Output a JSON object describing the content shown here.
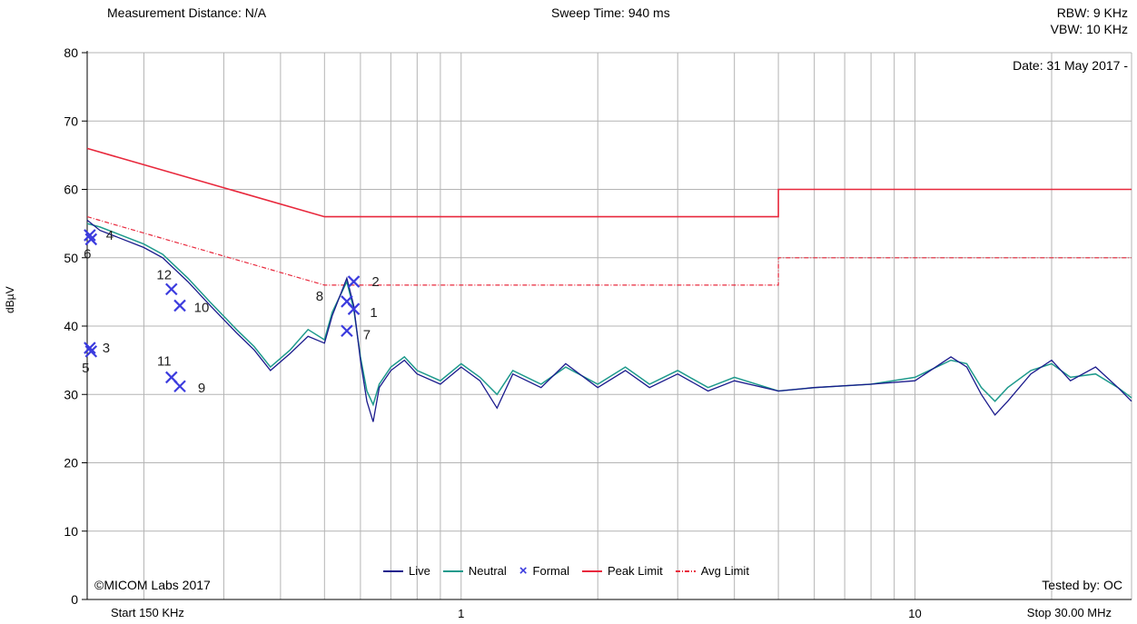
{
  "header": {
    "distance": "Measurement Distance: N/A",
    "sweep": "Sweep Time: 940 ms",
    "rbw": "RBW: 9 KHz",
    "vbw": "VBW: 10 KHz",
    "date": "Date: 31 May 2017 -",
    "copyright": "©MICOM Labs 2017",
    "tested_by": "Tested by: OC",
    "start": "Start 150 KHz",
    "stop": "Stop 30.00 MHz"
  },
  "chart_data": {
    "type": "line",
    "ylabel": "dBµV",
    "xscale": "log",
    "xlim": [
      0.15,
      30
    ],
    "ylim": [
      0,
      80
    ],
    "yticks": [
      0,
      10,
      20,
      30,
      40,
      50,
      60,
      70,
      80
    ],
    "xticks": [
      {
        "v": 1,
        "label": "1"
      },
      {
        "v": 10,
        "label": "10"
      }
    ],
    "grid": true,
    "legend_position": "bottom",
    "colors": {
      "live": "#1a1a8c",
      "neutral": "#1e9a8c",
      "formal": "#3b3bde",
      "peak": "#e8283c",
      "avg": "#e8283c",
      "grid": "#b4b4b4"
    },
    "legend": [
      "Live",
      "Neutral",
      "Formal",
      "Peak Limit",
      "Avg Limit"
    ],
    "peak_limit": [
      [
        0.15,
        66
      ],
      [
        0.5,
        56
      ],
      [
        5,
        56
      ],
      [
        5,
        60
      ],
      [
        30,
        60
      ]
    ],
    "avg_limit": [
      [
        0.15,
        56
      ],
      [
        0.5,
        46
      ],
      [
        5,
        46
      ],
      [
        5,
        50
      ],
      [
        30,
        50
      ]
    ],
    "live": [
      [
        0.15,
        55.5
      ],
      [
        0.16,
        54
      ],
      [
        0.175,
        53
      ],
      [
        0.2,
        51.5
      ],
      [
        0.22,
        50
      ],
      [
        0.25,
        46.5
      ],
      [
        0.28,
        43
      ],
      [
        0.32,
        39
      ],
      [
        0.35,
        36.5
      ],
      [
        0.38,
        33.5
      ],
      [
        0.42,
        36
      ],
      [
        0.46,
        38.5
      ],
      [
        0.5,
        37.5
      ],
      [
        0.52,
        41.5
      ],
      [
        0.56,
        47
      ],
      [
        0.58,
        43
      ],
      [
        0.6,
        35
      ],
      [
        0.62,
        29
      ],
      [
        0.64,
        26
      ],
      [
        0.66,
        31
      ],
      [
        0.7,
        33.5
      ],
      [
        0.75,
        35
      ],
      [
        0.8,
        33
      ],
      [
        0.9,
        31.5
      ],
      [
        1.0,
        34
      ],
      [
        1.1,
        32
      ],
      [
        1.2,
        28
      ],
      [
        1.3,
        33
      ],
      [
        1.5,
        31
      ],
      [
        1.7,
        34.5
      ],
      [
        2.0,
        31
      ],
      [
        2.3,
        33.5
      ],
      [
        2.6,
        31
      ],
      [
        3.0,
        33
      ],
      [
        3.5,
        30.5
      ],
      [
        4.0,
        32
      ],
      [
        5.0,
        30.5
      ],
      [
        6.0,
        31
      ],
      [
        8.0,
        31.5
      ],
      [
        10.0,
        32
      ],
      [
        12.0,
        35.5
      ],
      [
        13.0,
        34
      ],
      [
        14.0,
        30
      ],
      [
        15.0,
        27
      ],
      [
        16.0,
        29
      ],
      [
        18.0,
        33
      ],
      [
        20.0,
        35
      ],
      [
        22.0,
        32
      ],
      [
        25.0,
        34
      ],
      [
        28.0,
        31
      ],
      [
        30.0,
        29
      ]
    ],
    "neutral": [
      [
        0.15,
        55
      ],
      [
        0.16,
        54.5
      ],
      [
        0.175,
        53.5
      ],
      [
        0.2,
        52
      ],
      [
        0.22,
        50.5
      ],
      [
        0.25,
        47
      ],
      [
        0.28,
        43.5
      ],
      [
        0.32,
        39.5
      ],
      [
        0.35,
        37
      ],
      [
        0.38,
        34
      ],
      [
        0.42,
        36.5
      ],
      [
        0.46,
        39.5
      ],
      [
        0.5,
        38
      ],
      [
        0.52,
        42
      ],
      [
        0.56,
        46.5
      ],
      [
        0.58,
        42.5
      ],
      [
        0.6,
        35.5
      ],
      [
        0.62,
        30.5
      ],
      [
        0.64,
        28.5
      ],
      [
        0.66,
        31.5
      ],
      [
        0.7,
        34
      ],
      [
        0.75,
        35.5
      ],
      [
        0.8,
        33.5
      ],
      [
        0.9,
        32
      ],
      [
        1.0,
        34.5
      ],
      [
        1.1,
        32.5
      ],
      [
        1.2,
        30
      ],
      [
        1.3,
        33.5
      ],
      [
        1.5,
        31.5
      ],
      [
        1.7,
        34
      ],
      [
        2.0,
        31.5
      ],
      [
        2.3,
        34
      ],
      [
        2.6,
        31.5
      ],
      [
        3.0,
        33.5
      ],
      [
        3.5,
        31
      ],
      [
        4.0,
        32.5
      ],
      [
        5.0,
        30.5
      ],
      [
        6.0,
        31
      ],
      [
        8.0,
        31.5
      ],
      [
        10.0,
        32.5
      ],
      [
        12.0,
        35
      ],
      [
        13.0,
        34.5
      ],
      [
        14.0,
        31
      ],
      [
        15.0,
        29
      ],
      [
        16.0,
        31
      ],
      [
        18.0,
        33.5
      ],
      [
        20.0,
        34.5
      ],
      [
        22.0,
        32.5
      ],
      [
        25.0,
        33
      ],
      [
        28.0,
        31
      ],
      [
        30.0,
        29.5
      ]
    ],
    "formal": [
      {
        "label": "1",
        "x": 0.58,
        "y": 42.5
      },
      {
        "label": "2",
        "x": 0.58,
        "y": 46.5
      },
      {
        "label": "3",
        "x": 0.152,
        "y": 36.8
      },
      {
        "label": "4",
        "x": 0.152,
        "y": 53.3
      },
      {
        "label": "5",
        "x": 0.153,
        "y": 36.3
      },
      {
        "label": "6",
        "x": 0.153,
        "y": 52.7
      },
      {
        "label": "7",
        "x": 0.56,
        "y": 39.3
      },
      {
        "label": "8",
        "x": 0.56,
        "y": 43.6
      },
      {
        "label": "9",
        "x": 0.24,
        "y": 31.2
      },
      {
        "label": "10",
        "x": 0.24,
        "y": 43
      },
      {
        "label": "11",
        "x": 0.23,
        "y": 32.5
      },
      {
        "label": "12",
        "x": 0.23,
        "y": 45.4
      }
    ]
  }
}
